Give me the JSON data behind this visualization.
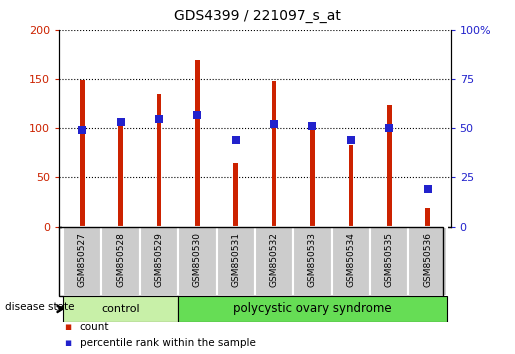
{
  "title": "GDS4399 / 221097_s_at",
  "samples": [
    "GSM850527",
    "GSM850528",
    "GSM850529",
    "GSM850530",
    "GSM850531",
    "GSM850532",
    "GSM850533",
    "GSM850534",
    "GSM850535",
    "GSM850536"
  ],
  "counts": [
    149,
    105,
    135,
    170,
    65,
    148,
    103,
    83,
    124,
    19
  ],
  "percentiles": [
    49,
    53,
    55,
    57,
    44,
    52,
    51,
    44,
    50,
    19
  ],
  "bar_color": "#cc2200",
  "dot_color": "#2222cc",
  "left_ylim": [
    0,
    200
  ],
  "right_ylim": [
    0,
    100
  ],
  "left_yticks": [
    0,
    50,
    100,
    150,
    200
  ],
  "right_yticks": [
    0,
    25,
    50,
    75,
    100
  ],
  "right_yticklabels": [
    "0",
    "25",
    "50",
    "75",
    "100%"
  ],
  "group_labels": [
    "control",
    "polycystic ovary syndrome"
  ],
  "ctrl_color": "#c8f0a8",
  "pcos_color": "#66dd55",
  "sample_bg_color": "#cccccc",
  "legend_count": "count",
  "legend_percentile": "percentile rank within the sample",
  "bar_width": 0.12,
  "dot_size": 28
}
